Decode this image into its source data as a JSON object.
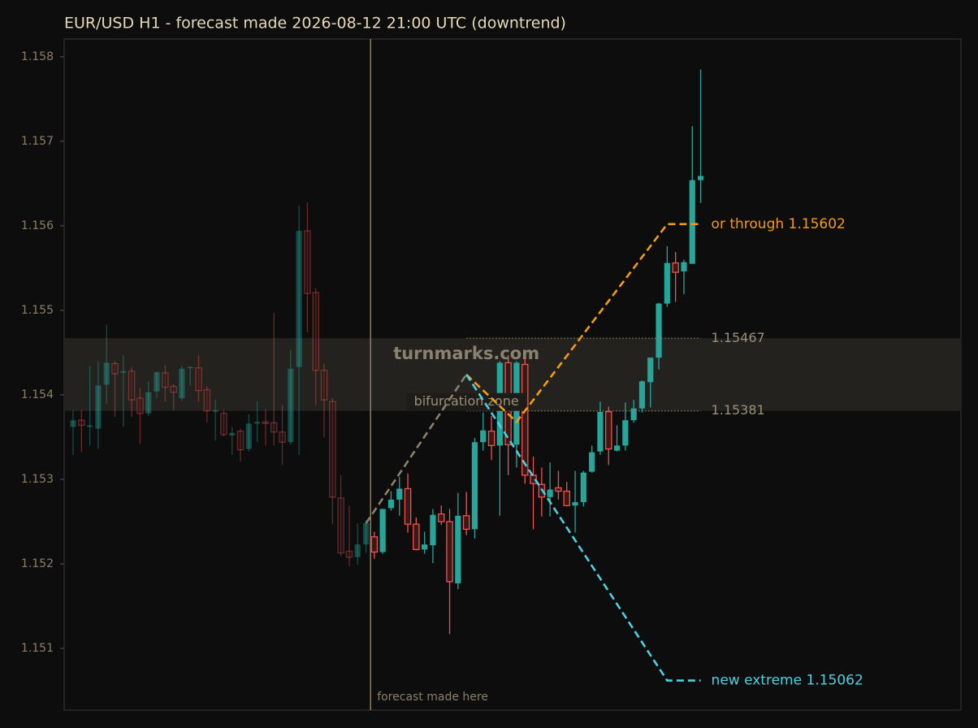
{
  "chart_data": {
    "type": "candlestick",
    "title": "EUR/USD H1 - forecast made 2026-08-12 21:00 UTC (downtrend)",
    "up_color": "#26a69a",
    "down_color": "#ef5350",
    "x": [
      0,
      1,
      2,
      3,
      4,
      5,
      6,
      7,
      8,
      9,
      10,
      11,
      12,
      13,
      14,
      15,
      16,
      17,
      18,
      19,
      20,
      21,
      22,
      23,
      24,
      25,
      26,
      27,
      28,
      29,
      30,
      31,
      32,
      33,
      34,
      35,
      36,
      37,
      38,
      39,
      40,
      41,
      42,
      43,
      44,
      45,
      46,
      47,
      48,
      49,
      50,
      51,
      52,
      53,
      54,
      55,
      56,
      57,
      58,
      59,
      60,
      61,
      62,
      63,
      64,
      65,
      66,
      67,
      68,
      69,
      70,
      71,
      72,
      73,
      74,
      75
    ],
    "open": [
      1.15362,
      1.1537,
      1.15362,
      1.1536,
      1.15412,
      1.15437,
      1.15426,
      1.15428,
      1.15396,
      1.15378,
      1.15404,
      1.15426,
      1.1541,
      1.15396,
      1.15432,
      1.15432,
      1.15406,
      1.1538,
      1.15378,
      1.15352,
      1.15357,
      1.15336,
      1.15366,
      1.15368,
      1.15367,
      1.15356,
      1.15344,
      1.15433,
      1.15594,
      1.15521,
      1.15429,
      1.15392,
      1.15278,
      1.15215,
      1.15208,
      1.15223,
      1.15232,
      1.15214,
      1.15266,
      1.15276,
      1.15289,
      1.15247,
      1.15217,
      1.15222,
      1.15259,
      1.1525,
      1.15177,
      1.15257,
      1.15241,
      1.15344,
      1.15357,
      1.1534,
      1.15438,
      1.15341,
      1.15436,
      1.15305,
      1.15294,
      1.15279,
      1.1529,
      1.15286,
      1.15269,
      1.15273,
      1.15309,
      1.15333,
      1.1538,
      1.15334,
      1.1534,
      1.1537,
      1.15384,
      1.15415,
      1.15444,
      1.15508,
      1.15556,
      1.15546,
      1.15555,
      1.15654
    ],
    "high": [
      1.15382,
      1.15382,
      1.15434,
      1.1544,
      1.15483,
      1.1544,
      1.15447,
      1.15433,
      1.15408,
      1.15416,
      1.15427,
      1.15435,
      1.15413,
      1.15434,
      1.15434,
      1.15447,
      1.1541,
      1.15394,
      1.15382,
      1.15362,
      1.1536,
      1.15377,
      1.15392,
      1.15383,
      1.15497,
      1.15388,
      1.15453,
      1.15624,
      1.15628,
      1.15526,
      1.15437,
      1.15396,
      1.15305,
      1.15269,
      1.15248,
      1.15252,
      1.15238,
      1.15265,
      1.15286,
      1.15303,
      1.15307,
      1.15255,
      1.15238,
      1.15265,
      1.15269,
      1.15265,
      1.15284,
      1.15285,
      1.15349,
      1.15379,
      1.15375,
      1.1544,
      1.15447,
      1.1544,
      1.15444,
      1.15327,
      1.15314,
      1.1532,
      1.1531,
      1.15297,
      1.1531,
      1.1531,
      1.1534,
      1.15392,
      1.15386,
      1.15364,
      1.15391,
      1.15394,
      1.15417,
      1.15444,
      1.15509,
      1.15576,
      1.15569,
      1.1556,
      1.15718,
      1.15785
    ],
    "low": [
      1.15329,
      1.15332,
      1.1534,
      1.15336,
      1.15389,
      1.15374,
      1.15362,
      1.15374,
      1.15342,
      1.15375,
      1.15396,
      1.15392,
      1.15382,
      1.15393,
      1.15411,
      1.15392,
      1.15367,
      1.15346,
      1.15351,
      1.15329,
      1.15321,
      1.15333,
      1.15344,
      1.1534,
      1.1534,
      1.15317,
      1.15341,
      1.15329,
      1.15474,
      1.15388,
      1.1535,
      1.15247,
      1.15209,
      1.15197,
      1.15199,
      1.15213,
      1.15206,
      1.15212,
      1.15263,
      1.15257,
      1.15237,
      1.15216,
      1.15212,
      1.15201,
      1.15246,
      1.15117,
      1.1517,
      1.15234,
      1.1523,
      1.15334,
      1.15323,
      1.15257,
      1.15305,
      1.15314,
      1.15295,
      1.15241,
      1.15256,
      1.15256,
      1.15276,
      1.15268,
      1.15237,
      1.15268,
      1.15308,
      1.15329,
      1.15317,
      1.15333,
      1.15334,
      1.15367,
      1.15379,
      1.15385,
      1.1543,
      1.15504,
      1.1551,
      1.15519,
      1.15555,
      1.15627
    ],
    "close": [
      1.1537,
      1.15364,
      1.15364,
      1.15411,
      1.15438,
      1.15425,
      1.15428,
      1.15394,
      1.15378,
      1.15403,
      1.15427,
      1.15409,
      1.15403,
      1.15431,
      1.15433,
      1.15405,
      1.15381,
      1.15382,
      1.15353,
      1.15355,
      1.15335,
      1.15366,
      1.15368,
      1.15366,
      1.15356,
      1.15344,
      1.15431,
      1.15594,
      1.1552,
      1.15429,
      1.15394,
      1.15279,
      1.15213,
      1.15208,
      1.15223,
      1.15248,
      1.15214,
      1.15265,
      1.15276,
      1.15289,
      1.15247,
      1.15217,
      1.15223,
      1.15258,
      1.1525,
      1.15179,
      1.15257,
      1.15241,
      1.15344,
      1.15358,
      1.1534,
      1.15438,
      1.15341,
      1.15438,
      1.15305,
      1.15295,
      1.15279,
      1.15288,
      1.15286,
      1.15269,
      1.15273,
      1.15308,
      1.15332,
      1.1538,
      1.15336,
      1.1534,
      1.1537,
      1.15384,
      1.15416,
      1.15444,
      1.15508,
      1.15556,
      1.15545,
      1.15557,
      1.15654,
      1.15659
    ],
    "xlim": [
      -1.07,
      106.11
    ],
    "ylim": [
      1.15027,
      1.15821
    ],
    "yticks": [
      1.151,
      1.152,
      1.153,
      1.154,
      1.155,
      1.156,
      1.157,
      1.158
    ],
    "forecast_x": 35.55,
    "forecast_label": "forecast made here",
    "paths": [
      {
        "color": "#8c8068",
        "x": [
          35,
          47
        ],
        "values": [
          1.15248,
          1.15424
        ]
      },
      {
        "color": "#f39c12",
        "x": [
          47,
          53,
          71,
          75
        ],
        "values": [
          1.15424,
          1.15368,
          1.15602,
          1.15602
        ],
        "annotation": "or through 1.15602"
      },
      {
        "color": "#4dd0e1",
        "x": [
          47,
          71,
          75
        ],
        "values": [
          1.15424,
          1.15062,
          1.15062
        ],
        "annotation": "new extreme 1.15062"
      }
    ],
    "levels": [
      {
        "value": 1.15467,
        "x": [
          47,
          75
        ]
      },
      {
        "value": 1.15381,
        "x": [
          47,
          75
        ]
      }
    ],
    "zone_label": "bifurcation zone",
    "watermark": "turnmarks.com"
  }
}
